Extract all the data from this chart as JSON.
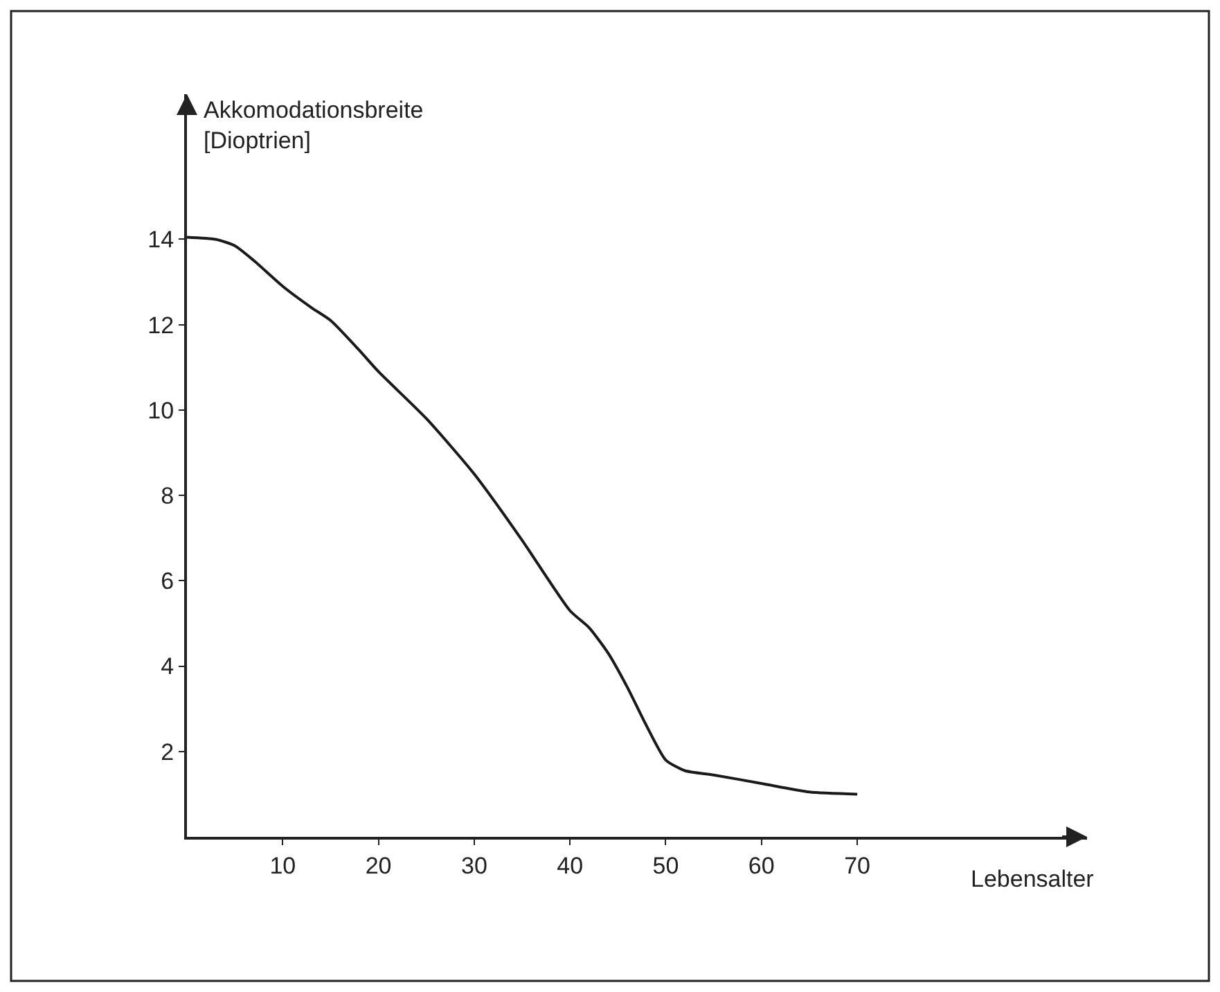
{
  "chart_data": {
    "type": "line",
    "xlabel": "Lebensalter",
    "ylabel": "Akkomodationsbreite\n[Dioptrien]",
    "x": [
      0,
      3,
      5,
      7,
      10,
      13,
      15,
      18,
      20,
      25,
      30,
      35,
      40,
      42,
      44,
      46,
      48,
      50,
      52,
      55,
      60,
      65,
      70
    ],
    "series": [
      {
        "color": "#1a1a1a",
        "values": [
          14.05,
          14.0,
          13.85,
          13.5,
          12.9,
          12.4,
          12.1,
          11.4,
          10.9,
          9.8,
          8.5,
          6.95,
          5.3,
          4.9,
          4.3,
          3.5,
          2.6,
          1.8,
          1.55,
          1.45,
          1.25,
          1.05,
          1.0
        ]
      }
    ],
    "xlim": [
      0,
      94
    ],
    "ylim": [
      0,
      17.4
    ],
    "xticks": [
      10,
      20,
      30,
      40,
      50,
      60,
      70
    ],
    "yticks": [
      2,
      4,
      6,
      8,
      10,
      12,
      14
    ],
    "marker": "none",
    "line_style": "solid"
  }
}
